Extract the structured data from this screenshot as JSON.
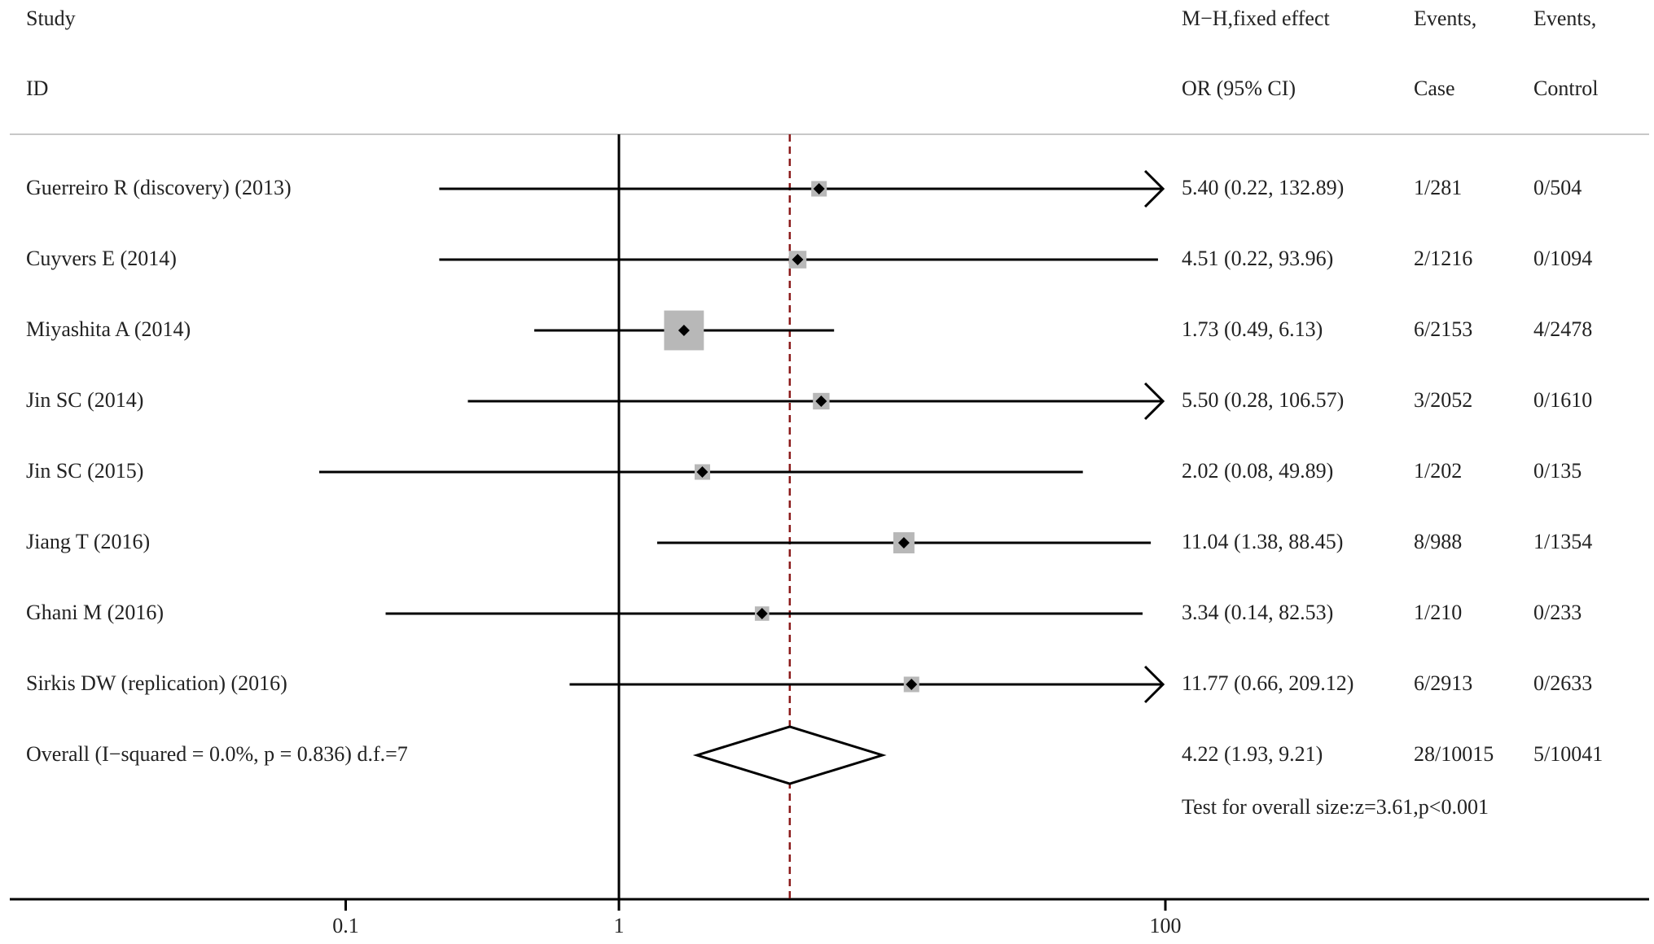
{
  "headers": {
    "study_line1": "Study",
    "study_line2": "ID",
    "effect_line1": "M−H,fixed effect",
    "effect_line2": "OR (95% CI)",
    "case_line1": "Events,",
    "case_line2": "Case",
    "control_line1": "Events,",
    "control_line2": "Control"
  },
  "chart_data": {
    "type": "forest",
    "x_scale": "log",
    "x_ticks": [
      {
        "value": 0.1,
        "label": "0.1"
      },
      {
        "value": 1,
        "label": "1"
      },
      {
        "value": 100,
        "label": "100"
      }
    ],
    "display_range": [
      0.0307,
      98
    ],
    "null_line": 1,
    "studies": [
      {
        "label": "Guerreiro R (discovery) (2013)",
        "or": 5.4,
        "lo": 0.22,
        "hi": 132.89,
        "ci_text": "5.40 (0.22, 132.89)",
        "case": "1/281",
        "control": "0/504",
        "weight": 0.07
      },
      {
        "label": "Cuyvers E (2014)",
        "or": 4.51,
        "lo": 0.22,
        "hi": 93.96,
        "ci_text": "4.51 (0.22, 93.96)",
        "case": "2/1216",
        "control": "0/1094",
        "weight": 0.09
      },
      {
        "label": "Miyashita A (2014)",
        "or": 1.73,
        "lo": 0.49,
        "hi": 6.13,
        "ci_text": "1.73 (0.49, 6.13)",
        "case": "6/2153",
        "control": "4/2478",
        "weight": 0.46
      },
      {
        "label": "Jin SC (2014)",
        "or": 5.5,
        "lo": 0.28,
        "hi": 106.57,
        "ci_text": "5.50 (0.28, 106.57)",
        "case": "3/2052",
        "control": "0/1610",
        "weight": 0.08
      },
      {
        "label": "Jin SC (2015)",
        "or": 2.02,
        "lo": 0.08,
        "hi": 49.89,
        "ci_text": "2.02 (0.08, 49.89)",
        "case": "1/202",
        "control": "0/135",
        "weight": 0.07
      },
      {
        "label": "Jiang T (2016)",
        "or": 11.04,
        "lo": 1.38,
        "hi": 88.45,
        "ci_text": "11.04 (1.38, 88.45)",
        "case": "8/988",
        "control": "1/1354",
        "weight": 0.13
      },
      {
        "label": "Ghani M (2016)",
        "or": 3.34,
        "lo": 0.14,
        "hi": 82.53,
        "ci_text": "3.34 (0.14, 82.53)",
        "case": "1/210",
        "control": "0/233",
        "weight": 0.06
      },
      {
        "label": "Sirkis DW (replication) (2016)",
        "or": 11.77,
        "lo": 0.66,
        "hi": 209.12,
        "ci_text": "11.77 (0.66, 209.12)",
        "case": "6/2913",
        "control": "0/2633",
        "weight": 0.07
      }
    ],
    "overall": {
      "label": "Overall  (I−squared = 0.0%, p = 0.836)    d.f.=7",
      "or": 4.22,
      "lo": 1.93,
      "hi": 9.21,
      "ci_text": "4.22 (1.93, 9.21)",
      "case": "28/10015",
      "control": "5/10041"
    },
    "test_text": "Test for overall size:z=3.61,p<0.001",
    "colors": {
      "line": "#000000",
      "box": "#b8b8b8",
      "overall_line": "#8b1a1a",
      "separator": "#c8c8c8"
    }
  }
}
